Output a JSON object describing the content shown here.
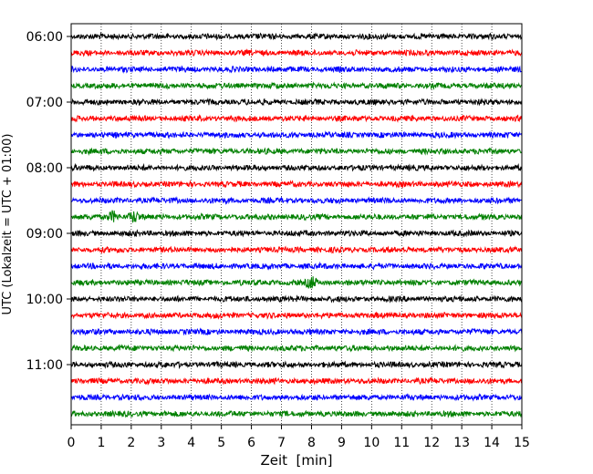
{
  "chart_data": {
    "type": "line",
    "title": "",
    "xlabel": "Zeit  [min]",
    "ylabel": "UTC (Lokalzeit = UTC + 01:00)",
    "x_ticks": [
      0,
      1,
      2,
      3,
      4,
      5,
      6,
      7,
      8,
      9,
      10,
      11,
      12,
      13,
      14,
      15
    ],
    "xlim": [
      0,
      15
    ],
    "y_ticks": [
      "06:00",
      "07:00",
      "08:00",
      "09:00",
      "10:00",
      "11:00"
    ],
    "grid": "vertical dotted lines at each minute",
    "trace_interval_min": 15,
    "start_time": "06:00",
    "traces": [
      {
        "color": "#000000"
      },
      {
        "color": "#ff0000"
      },
      {
        "color": "#0000ff"
      },
      {
        "color": "#008000"
      },
      {
        "color": "#000000"
      },
      {
        "color": "#ff0000"
      },
      {
        "color": "#0000ff"
      },
      {
        "color": "#008000"
      },
      {
        "color": "#000000"
      },
      {
        "color": "#ff0000"
      },
      {
        "color": "#0000ff"
      },
      {
        "color": "#008000",
        "events_min": [
          1.4,
          2.1
        ]
      },
      {
        "color": "#000000"
      },
      {
        "color": "#ff0000"
      },
      {
        "color": "#0000ff"
      },
      {
        "color": "#008000",
        "events_min": [
          8.0
        ]
      },
      {
        "color": "#000000"
      },
      {
        "color": "#ff0000"
      },
      {
        "color": "#0000ff"
      },
      {
        "color": "#008000"
      },
      {
        "color": "#000000"
      },
      {
        "color": "#ff0000"
      },
      {
        "color": "#0000ff"
      },
      {
        "color": "#008000"
      }
    ]
  }
}
